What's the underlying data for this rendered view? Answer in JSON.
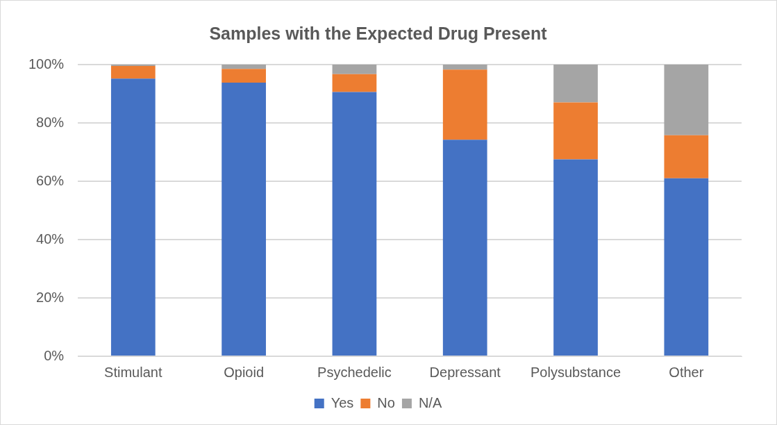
{
  "chart_data": {
    "type": "bar",
    "title": "Samples with the Expected Drug Present",
    "categories": [
      "Stimulant",
      "Opioid",
      "Psychedelic",
      "Depressant",
      "Polysubstance",
      "Other"
    ],
    "series": [
      {
        "name": "Yes",
        "color": "#4472c4",
        "values": [
          95.2,
          93.8,
          90.6,
          74.2,
          67.5,
          61.0
        ]
      },
      {
        "name": "No",
        "color": "#ed7d31",
        "values": [
          4.3,
          4.7,
          6.1,
          24.1,
          19.5,
          14.8
        ]
      },
      {
        "name": "N/A",
        "color": "#a5a5a5",
        "values": [
          0.5,
          1.5,
          3.3,
          1.7,
          13.0,
          24.2
        ]
      }
    ],
    "stacked": true,
    "ylim": [
      0,
      100
    ],
    "yticks": [
      {
        "value": 0,
        "label": "0%"
      },
      {
        "value": 20,
        "label": "20%"
      },
      {
        "value": 40,
        "label": "40%"
      },
      {
        "value": 60,
        "label": "60%"
      },
      {
        "value": 80,
        "label": "80%"
      },
      {
        "value": 100,
        "label": "100%"
      }
    ],
    "grid": "y",
    "legend": "bottom"
  }
}
